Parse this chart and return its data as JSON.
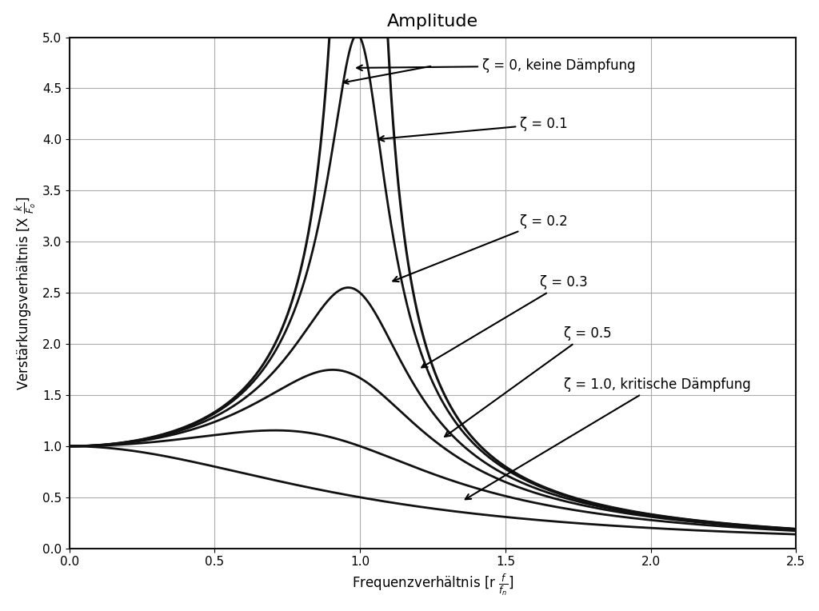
{
  "title": "Amplitude",
  "xlabel": "Frequenzverhältnis [r $\\frac{f}{f_n}$]",
  "ylabel": "Verstärkungsverhältnis [X $\\frac{k}{F_o}$]",
  "xlim": [
    0,
    2.5
  ],
  "ylim": [
    0,
    5
  ],
  "xticks": [
    0,
    0.5,
    1.0,
    1.5,
    2.0,
    2.5
  ],
  "yticks": [
    0,
    0.5,
    1.0,
    1.5,
    2.0,
    2.5,
    3.0,
    3.5,
    4.0,
    4.5,
    5.0
  ],
  "zeta_values": [
    0.0,
    0.1,
    0.2,
    0.3,
    0.5,
    1.0
  ],
  "zeta_labels": [
    "ζ = 0, keine Dämpfung",
    "ζ = 0.1",
    "ζ = 0.2",
    "ζ = 0.3",
    "ζ = 0.5",
    "ζ = 1.0, kritische Dämpfung"
  ],
  "line_color": "#1a1a1a",
  "background_color": "#ffffff",
  "grid_color": "#aaaaaa",
  "title_fontsize": 16,
  "label_fontsize": 12,
  "tick_fontsize": 11,
  "annotation_fontsize": 12
}
